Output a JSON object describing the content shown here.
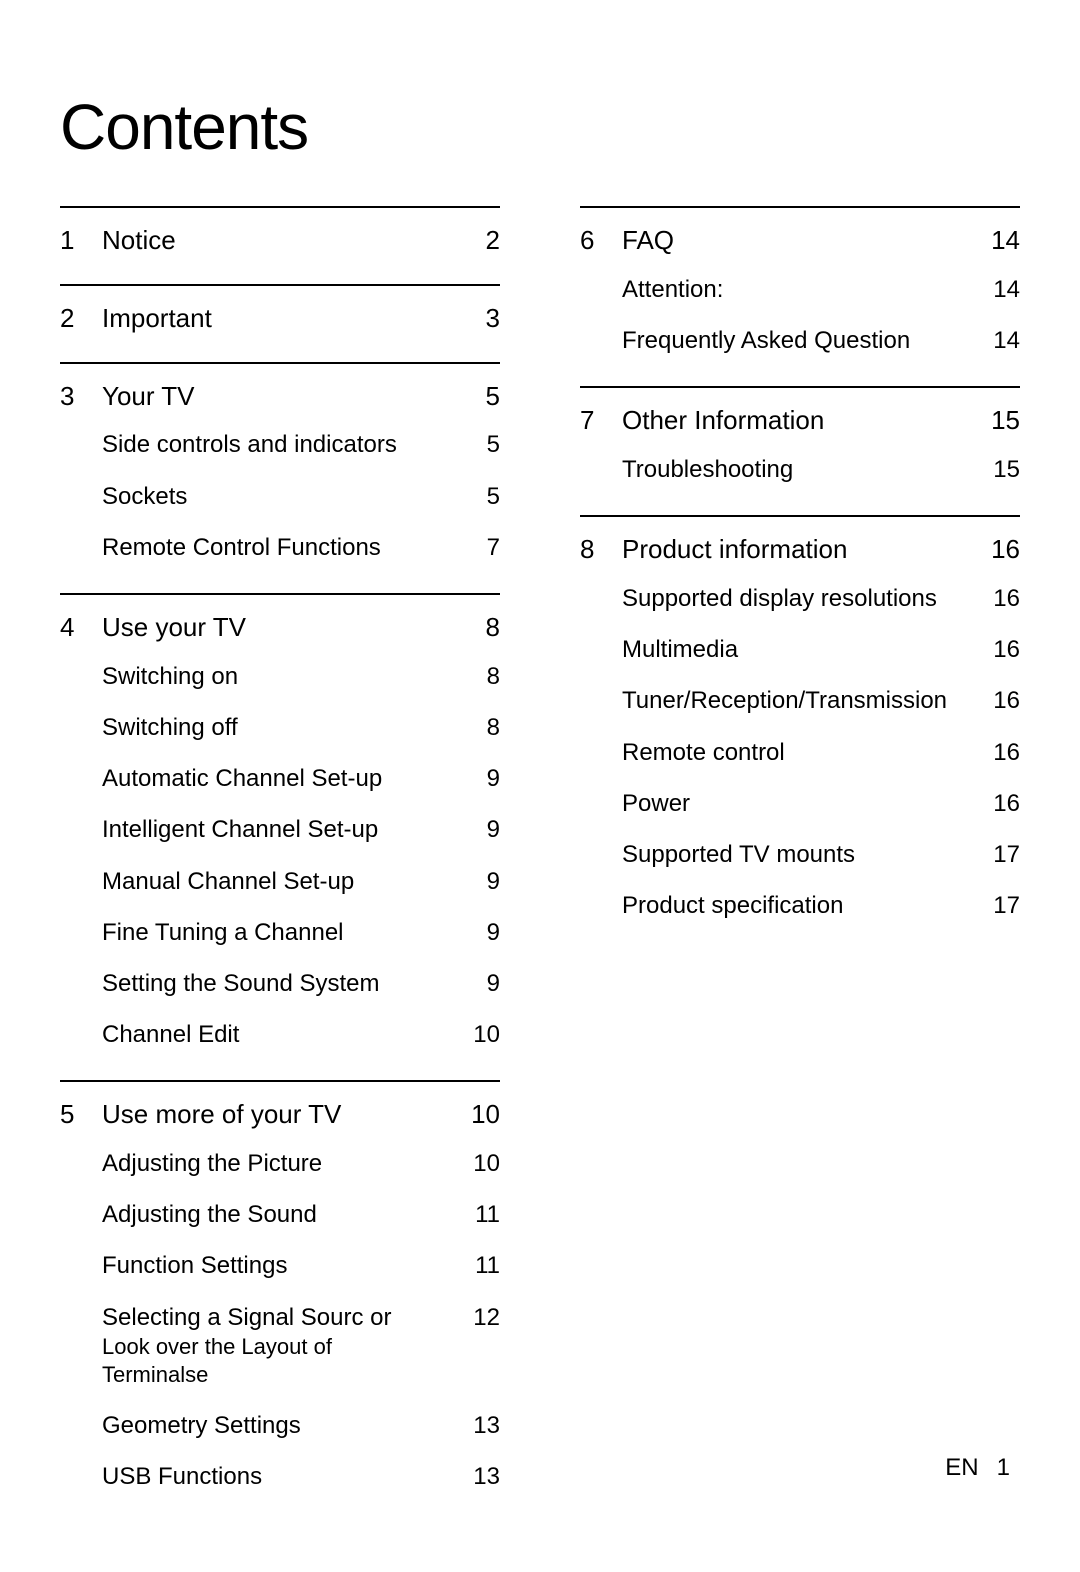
{
  "title": "Contents",
  "left_column": [
    {
      "num": "1",
      "title": "Notice",
      "page": "2",
      "items": []
    },
    {
      "num": "2",
      "title": "Important",
      "page": "3",
      "items": []
    },
    {
      "num": "3",
      "title": "Your  TV",
      "page": "5",
      "items": [
        {
          "title": "Side controls and indicators",
          "page": "5"
        },
        {
          "title": "Sockets",
          "page": "5"
        },
        {
          "title": "Remote Control Functions",
          "page": "7"
        }
      ]
    },
    {
      "num": "4",
      "title": "Use your TV",
      "page": "8",
      "items": [
        {
          "title": "Switching on",
          "page": "8"
        },
        {
          "title": "Switching off",
          "page": "8"
        },
        {
          "title": "Automatic Channel Set-up",
          "page": "9"
        },
        {
          "title": "Intelligent Channel Set-up",
          "page": "9"
        },
        {
          "title": "Manual Channel Set-up",
          "page": "9"
        },
        {
          "title": "Fine Tuning a Channel",
          "page": "9"
        },
        {
          "title": "Setting the Sound System",
          "page": "9"
        },
        {
          "title": "Channel Edit",
          "page": "10"
        }
      ]
    },
    {
      "num": "5",
      "title": "Use more of your TV",
      "page": "10",
      "items": [
        {
          "title": "Adjusting the Picture",
          "page": "10"
        },
        {
          "title": "Adjusting the Sound",
          "page": "11"
        },
        {
          "title": "Function Settings",
          "page": "11"
        },
        {
          "title": "Selecting a Signal Sourc or",
          "note": "Look over the Layout of Terminalse",
          "page": "12"
        },
        {
          "title": "Geometry Settings",
          "page": "13"
        },
        {
          "title": "USB Functions",
          "page": "13"
        }
      ]
    }
  ],
  "right_column": [
    {
      "num": "6",
      "title": "FAQ",
      "page": "14",
      "items": [
        {
          "title": "Attention:",
          "page": "14"
        },
        {
          "title": "Frequently Asked Question",
          "page": "14"
        }
      ]
    },
    {
      "num": "7",
      "title": "Other Information",
      "page": "15",
      "items": [
        {
          "title": "Troubleshooting",
          "page": "15"
        }
      ]
    },
    {
      "num": "8",
      "title": "Product information",
      "page": "16",
      "items": [
        {
          "title": "Supported display resolutions",
          "page": "16"
        },
        {
          "title": "Multimedia",
          "page": "16"
        },
        {
          "title": "Tuner/Reception/Transmission",
          "page": "16"
        },
        {
          "title": "Remote control",
          "page": "16"
        },
        {
          "title": "Power",
          "page": "16"
        },
        {
          "title": "Supported TV  mounts",
          "page": "17"
        },
        {
          "title": "Product  specification",
          "page": "17"
        }
      ]
    }
  ],
  "footer_lang": "EN",
  "footer_page": "1",
  "colors": {
    "background": "#ffffff",
    "text": "#000000",
    "rule": "#000000"
  },
  "typography": {
    "title_fontsize": 64,
    "section_fontsize": 26,
    "subitem_fontsize": 24,
    "footer_fontsize": 24
  }
}
